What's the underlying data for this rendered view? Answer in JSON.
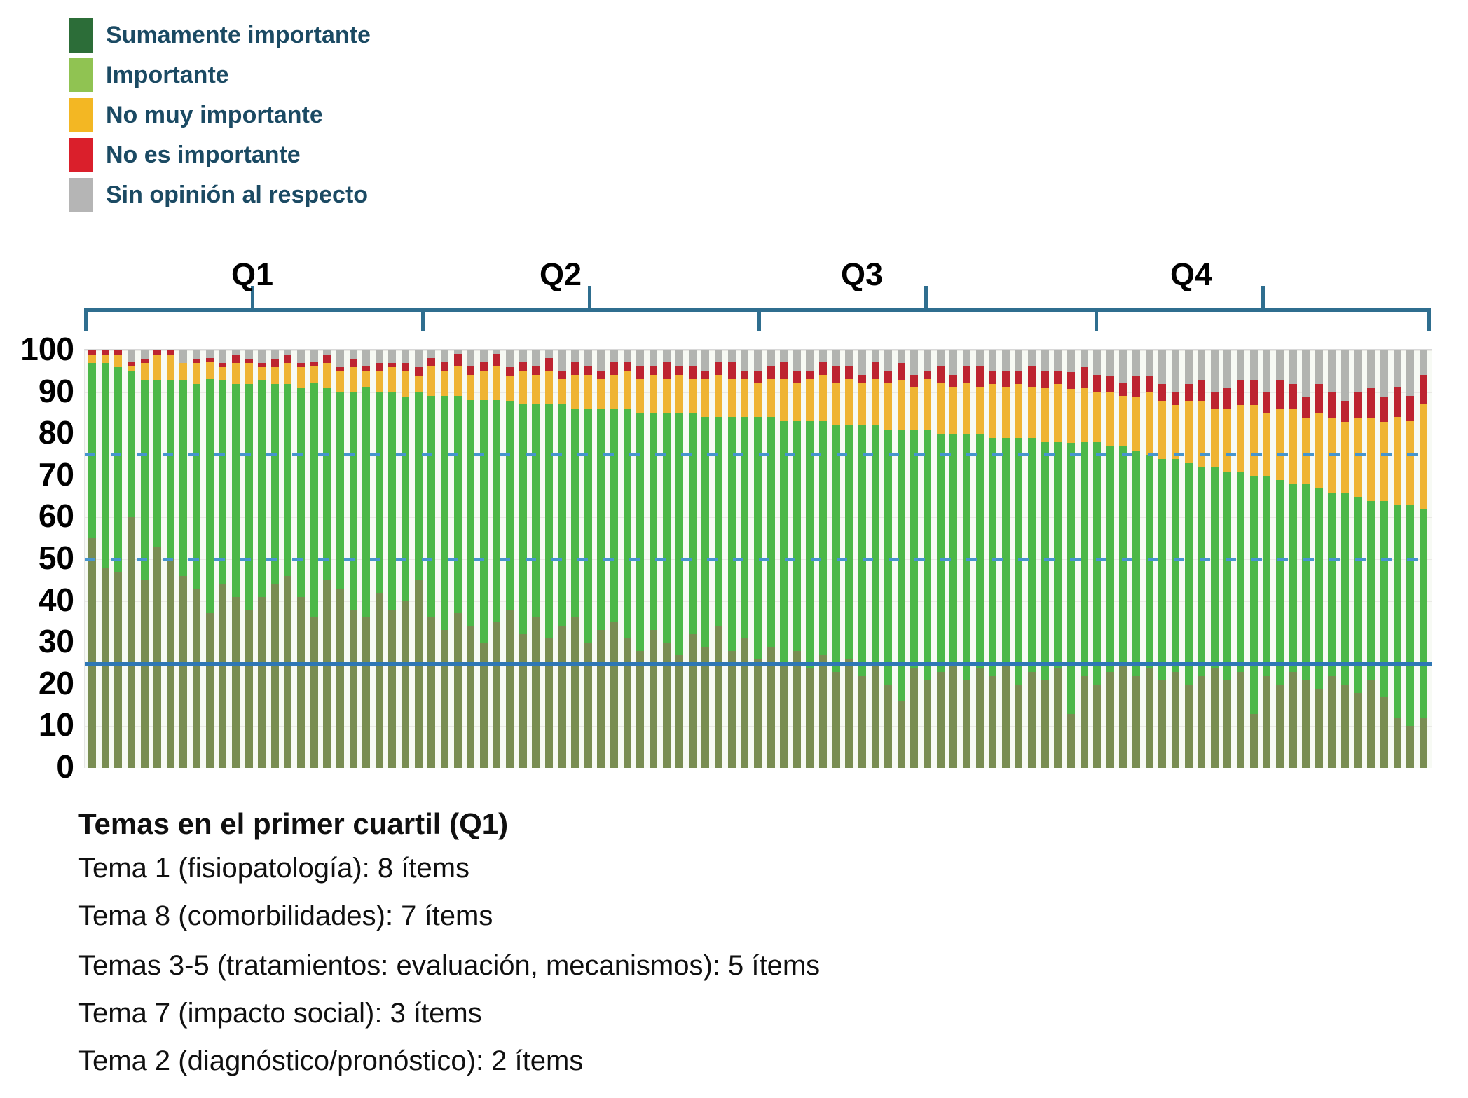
{
  "styles": {
    "legend_text_color": "#1b4a63",
    "bracket_color": "#2f6e8f",
    "plot_background": "#f7faf4",
    "gridline_color": "#e9e9e4",
    "ref_solid_color": "#2e77b5",
    "ref_dashed_color": "#4695ce",
    "axis_label_color": "#000000"
  },
  "legend": {
    "items": [
      {
        "label": "Sumamente importante",
        "color": "#2c6d38"
      },
      {
        "label": "Importante",
        "color": "#90c352"
      },
      {
        "label": "No muy importante",
        "color": "#f3b723"
      },
      {
        "label": "No es importante",
        "color": "#da1f2b"
      },
      {
        "label": "Sin opinión al respecto",
        "color": "#b5b5b5"
      }
    ]
  },
  "y_axis": {
    "ticks": [
      0,
      10,
      20,
      30,
      40,
      50,
      60,
      70,
      80,
      90,
      100
    ]
  },
  "chart_data": {
    "type": "bar",
    "subtype": "stacked-percent",
    "n_items": 103,
    "ylim": [
      0,
      100
    ],
    "legend_position": "top-left",
    "reference_lines": [
      {
        "value": 25,
        "style": "solid"
      },
      {
        "value": 50,
        "style": "dashed"
      },
      {
        "value": 75,
        "style": "dashed"
      }
    ],
    "quartile_brackets": [
      {
        "label": "Q1",
        "from_item": 1,
        "to_item": 26
      },
      {
        "label": "Q2",
        "from_item": 27,
        "to_item": 52
      },
      {
        "label": "Q3",
        "from_item": 53,
        "to_item": 78
      },
      {
        "label": "Q4",
        "from_item": 79,
        "to_item": 103
      }
    ],
    "series": [
      {
        "name": "Sumamente importante",
        "slug": "sumamente-importante",
        "color": "#798d52",
        "values": [
          55,
          48,
          47,
          60,
          45,
          53,
          50,
          46,
          43,
          37,
          44,
          41,
          38,
          41,
          44,
          46,
          41,
          36,
          45,
          43,
          38,
          36,
          42,
          38,
          40,
          45,
          36,
          33,
          37,
          34,
          30,
          35,
          38,
          32,
          36,
          31,
          34,
          36,
          30,
          33,
          35,
          31,
          28,
          33,
          30,
          27,
          32,
          29,
          34,
          28,
          31,
          26,
          29,
          25,
          28,
          24,
          27,
          23,
          26,
          22,
          25,
          20,
          16,
          24,
          21,
          23,
          25,
          21,
          24,
          22,
          25,
          20,
          23,
          21,
          24,
          13,
          22,
          20,
          23,
          25,
          22,
          24,
          21,
          23,
          20,
          22,
          24,
          21,
          23,
          13,
          22,
          20,
          23,
          21,
          19,
          22,
          20,
          18,
          21,
          17,
          12,
          10,
          12
        ]
      },
      {
        "name": "Importante",
        "slug": "importante",
        "color": "#4cb848",
        "values": [
          42,
          49,
          49,
          35,
          48,
          40,
          43,
          47,
          49,
          56,
          49,
          51,
          54,
          52,
          48,
          46,
          50,
          56,
          46,
          47,
          52,
          55,
          48,
          52,
          49,
          45,
          53,
          56,
          52,
          54,
          58,
          53,
          50,
          55,
          51,
          56,
          53,
          50,
          56,
          53,
          51,
          55,
          57,
          52,
          55,
          58,
          53,
          55,
          50,
          56,
          53,
          58,
          55,
          58,
          55,
          59,
          56,
          59,
          56,
          60,
          57,
          61,
          65,
          57,
          60,
          57,
          55,
          59,
          56,
          57,
          54,
          59,
          56,
          57,
          54,
          65,
          56,
          58,
          54,
          52,
          54,
          51,
          53,
          51,
          53,
          50,
          48,
          50,
          48,
          57,
          48,
          49,
          45,
          47,
          48,
          44,
          46,
          47,
          43,
          47,
          51,
          53,
          50
        ]
      },
      {
        "name": "No muy importante",
        "slug": "no-muy-importante",
        "color": "#efb433",
        "values": [
          2,
          2,
          3,
          1,
          4,
          6,
          6,
          4,
          5,
          4,
          3,
          5,
          5,
          3,
          4,
          5,
          5,
          4,
          6,
          5,
          6,
          4,
          5,
          6,
          6,
          4,
          7,
          6,
          7,
          6,
          7,
          8,
          6,
          8,
          7,
          8,
          6,
          8,
          8,
          7,
          8,
          9,
          8,
          9,
          8,
          9,
          8,
          9,
          10,
          9,
          9,
          8,
          9,
          10,
          9,
          10,
          11,
          10,
          11,
          10,
          11,
          11,
          12,
          10,
          12,
          12,
          11,
          12,
          11,
          13,
          12,
          13,
          12,
          13,
          14,
          13,
          13,
          12,
          13,
          12,
          13,
          15,
          14,
          13,
          15,
          16,
          14,
          15,
          16,
          17,
          15,
          17,
          18,
          16,
          18,
          18,
          17,
          19,
          20,
          19,
          21,
          20,
          25
        ]
      },
      {
        "name": "No es importante",
        "slug": "no-es-importante",
        "color": "#bd2430",
        "values": [
          1,
          1,
          1,
          1,
          1,
          1,
          1,
          0,
          1,
          1,
          1,
          2,
          1,
          1,
          2,
          2,
          1,
          1,
          2,
          1,
          2,
          1,
          2,
          1,
          2,
          2,
          2,
          2,
          3,
          2,
          2,
          3,
          2,
          2,
          2,
          3,
          2,
          3,
          2,
          2,
          3,
          2,
          3,
          2,
          4,
          2,
          3,
          2,
          3,
          4,
          2,
          3,
          3,
          4,
          3,
          2,
          3,
          4,
          3,
          2,
          4,
          3,
          4,
          3,
          2,
          4,
          3,
          4,
          5,
          3,
          4,
          3,
          5,
          4,
          3,
          4,
          5,
          4,
          4,
          3,
          5,
          4,
          4,
          3,
          4,
          5,
          4,
          5,
          6,
          6,
          5,
          7,
          6,
          5,
          7,
          6,
          5,
          6,
          7,
          6,
          7,
          6,
          7
        ]
      },
      {
        "name": "Sin opinión al respecto",
        "slug": "sin-opinion",
        "color": "#b2b4b0",
        "values": [
          0,
          0,
          0,
          3,
          2,
          0,
          0,
          3,
          2,
          2,
          3,
          1,
          2,
          3,
          2,
          1,
          3,
          3,
          1,
          4,
          2,
          4,
          3,
          3,
          3,
          4,
          2,
          3,
          1,
          4,
          3,
          1,
          4,
          3,
          4,
          2,
          5,
          3,
          4,
          5,
          3,
          3,
          4,
          4,
          3,
          4,
          4,
          5,
          3,
          3,
          5,
          5,
          4,
          3,
          5,
          5,
          3,
          4,
          4,
          6,
          3,
          5,
          3,
          6,
          5,
          4,
          6,
          4,
          4,
          5,
          5,
          5,
          4,
          5,
          5,
          5,
          4,
          6,
          6,
          8,
          6,
          6,
          8,
          10,
          8,
          7,
          10,
          9,
          7,
          7,
          10,
          7,
          8,
          11,
          8,
          10,
          12,
          10,
          9,
          11,
          9,
          11,
          6
        ]
      }
    ]
  },
  "footnote": {
    "title": "Temas en el primer cuartil (Q1)",
    "items": [
      "Tema 1 (fisiopatología): 8 ítems",
      "Tema 8 (comorbilidades): 7 ítems",
      "Temas 3-5 (tratamientos: evaluación, mecanismos): 5 ítems",
      "Tema 7 (impacto social): 3 ítems",
      "Tema 2 (diagnóstico/pronóstico): 2 ítems"
    ]
  }
}
